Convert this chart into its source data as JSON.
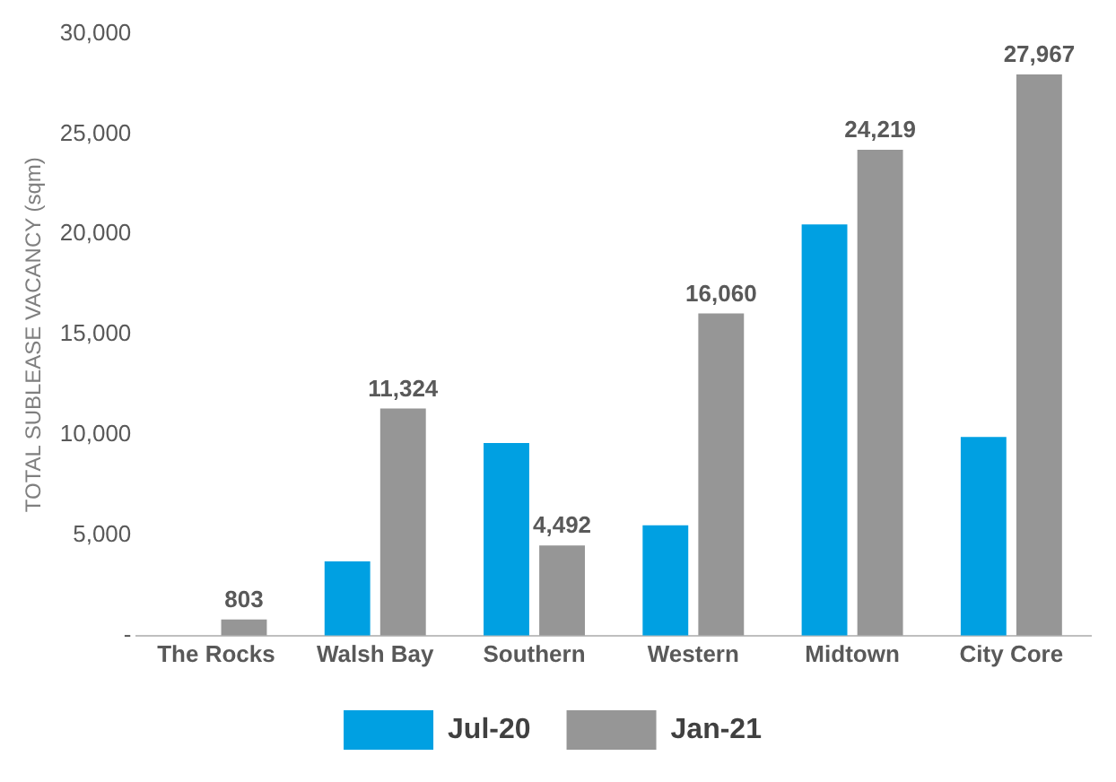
{
  "chart_data": {
    "type": "bar",
    "ylabel": "TOTAL SUBLEASE VACANCY (sqm)",
    "categories": [
      "The Rocks",
      "Walsh Bay",
      "Southern",
      "Western",
      "Midtown",
      "City Core"
    ],
    "series": [
      {
        "name": "Jul-20",
        "color": "#00a0e2",
        "values": [
          null,
          3700,
          9600,
          5500,
          20500,
          9900
        ]
      },
      {
        "name": "Jan-21",
        "color": "#969696",
        "values": [
          803,
          11324,
          4492,
          16060,
          24219,
          27967
        ],
        "value_labels": [
          "803",
          "11,324",
          "4,492",
          "16,060",
          "24,219",
          "27,967"
        ]
      }
    ],
    "ylim": [
      0,
      30000
    ],
    "yticks": [
      {
        "value": 0,
        "label": "-"
      },
      {
        "value": 5000,
        "label": "5,000"
      },
      {
        "value": 10000,
        "label": "10,000"
      },
      {
        "value": 15000,
        "label": "15,000"
      },
      {
        "value": 20000,
        "label": "20,000"
      },
      {
        "value": 25000,
        "label": "25,000"
      },
      {
        "value": 30000,
        "label": "30,000"
      }
    ],
    "grid": false,
    "legend": "bottom"
  }
}
